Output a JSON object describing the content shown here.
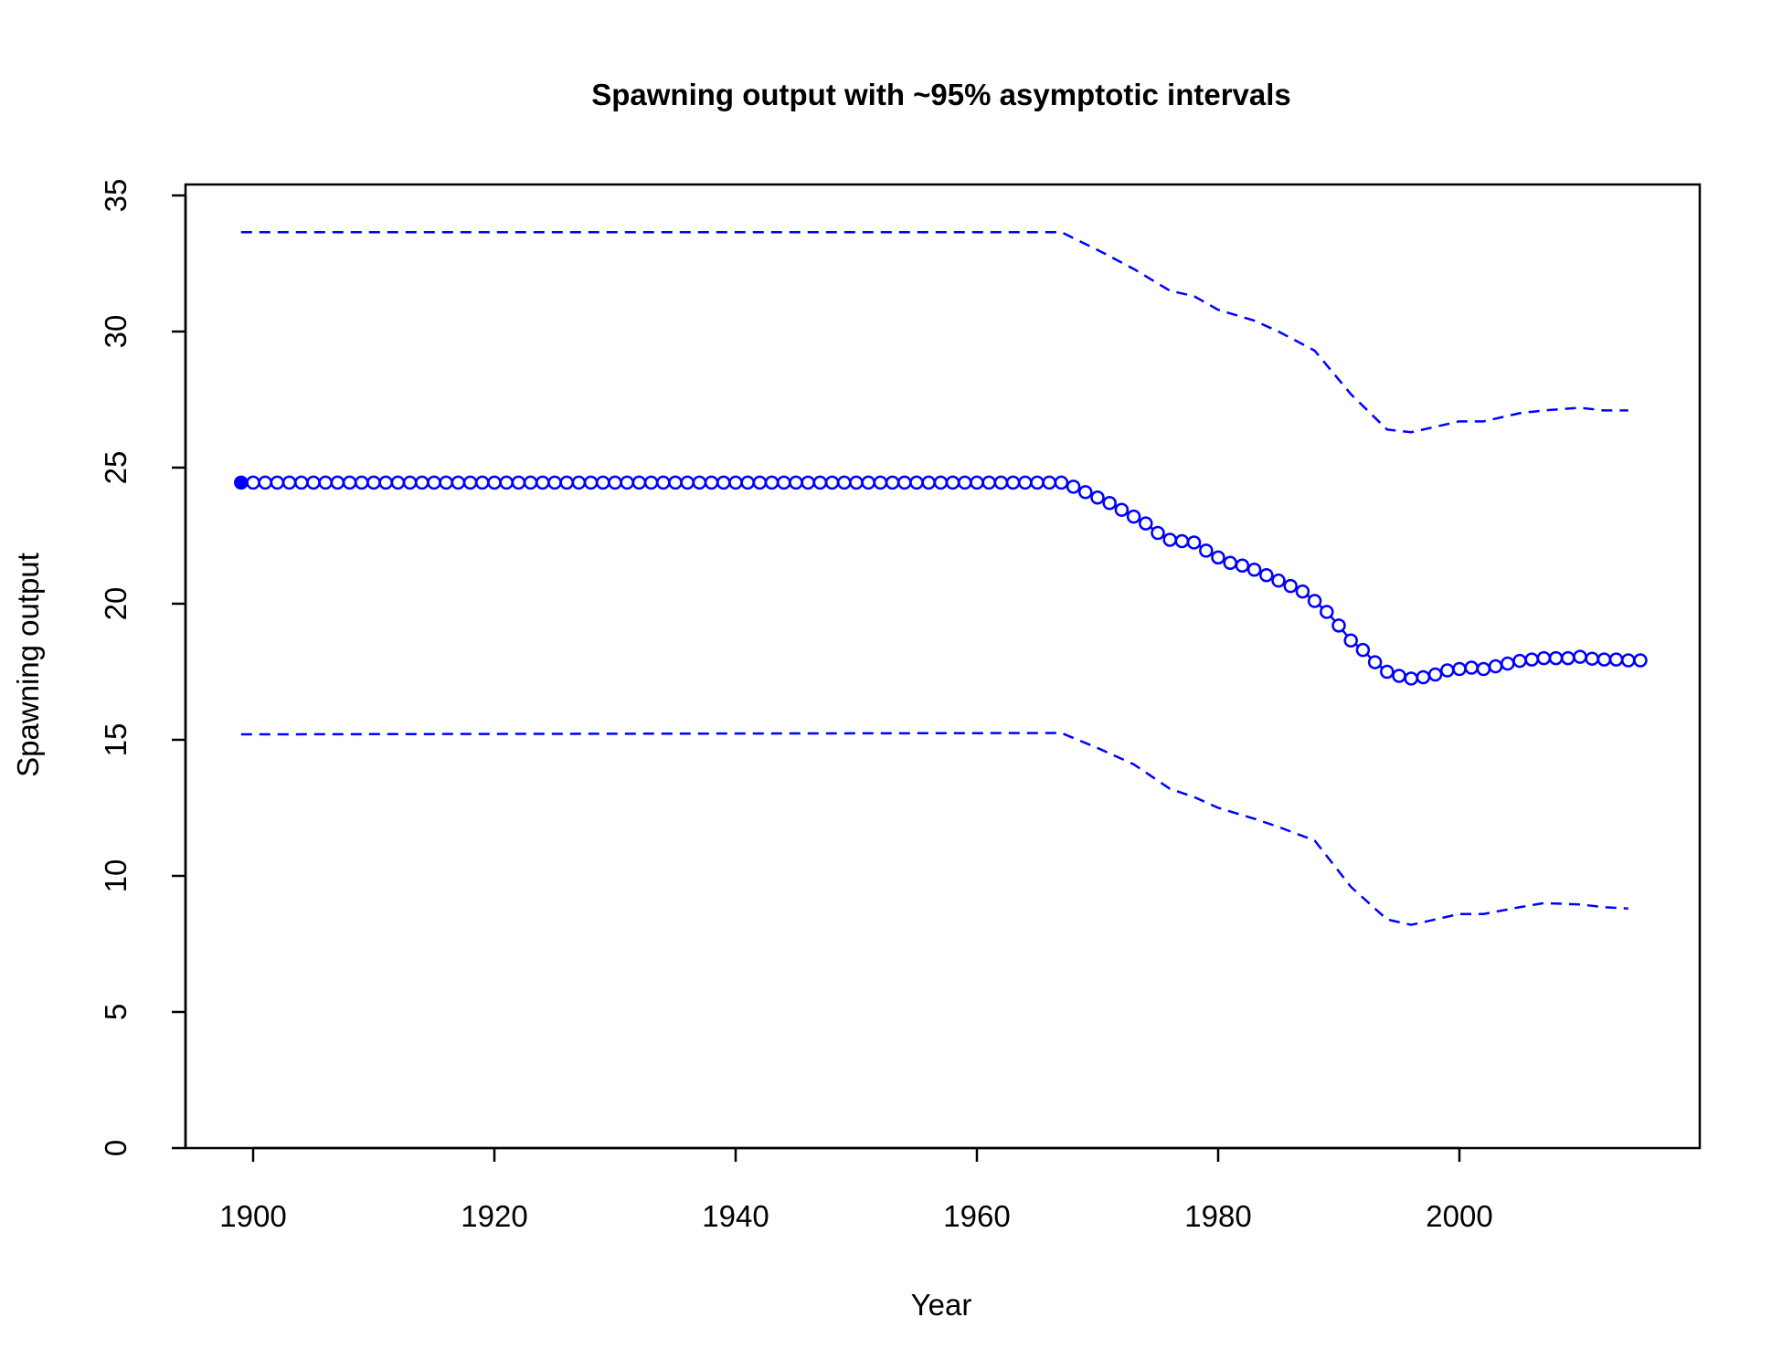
{
  "chart_data": {
    "type": "line",
    "title": "Spawning output with ~95% asymptotic intervals",
    "xlabel": "Year",
    "ylabel": "Spawning output",
    "xlim": [
      1899,
      2015
    ],
    "ylim": [
      0,
      35
    ],
    "x_ticks": [
      "1900",
      "1920",
      "1940",
      "1960",
      "1980",
      "2000"
    ],
    "y_ticks": [
      "0",
      "5",
      "10",
      "15",
      "20",
      "25",
      "30",
      "35"
    ],
    "grid": false,
    "legend": "none",
    "colors": {
      "series": "#0000ff",
      "axis": "#000000",
      "background": "#ffffff"
    },
    "series": [
      {
        "role": "estimate",
        "style": "solid line with open circles, first point filled",
        "x": [
          1899,
          1900,
          1901,
          1902,
          1903,
          1904,
          1905,
          1906,
          1907,
          1908,
          1909,
          1910,
          1911,
          1912,
          1913,
          1914,
          1915,
          1916,
          1917,
          1918,
          1919,
          1920,
          1921,
          1922,
          1923,
          1924,
          1925,
          1926,
          1927,
          1928,
          1929,
          1930,
          1931,
          1932,
          1933,
          1934,
          1935,
          1936,
          1937,
          1938,
          1939,
          1940,
          1941,
          1942,
          1943,
          1944,
          1945,
          1946,
          1947,
          1948,
          1949,
          1950,
          1951,
          1952,
          1953,
          1954,
          1955,
          1956,
          1957,
          1958,
          1959,
          1960,
          1961,
          1962,
          1963,
          1964,
          1965,
          1966,
          1967,
          1968,
          1969,
          1970,
          1971,
          1972,
          1973,
          1974,
          1975,
          1976,
          1977,
          1978,
          1979,
          1980,
          1981,
          1982,
          1983,
          1984,
          1985,
          1986,
          1987,
          1988,
          1989,
          1990,
          1991,
          1992,
          1993,
          1994,
          1995,
          1996,
          1997,
          1998,
          1999,
          2000,
          2001,
          2002,
          2003,
          2004,
          2005,
          2006,
          2007,
          2008,
          2009,
          2010,
          2011,
          2012,
          2013,
          2014,
          2015
        ],
        "y": [
          24.45,
          24.45,
          24.45,
          24.45,
          24.45,
          24.45,
          24.45,
          24.45,
          24.45,
          24.45,
          24.45,
          24.45,
          24.45,
          24.45,
          24.45,
          24.45,
          24.45,
          24.45,
          24.45,
          24.45,
          24.45,
          24.45,
          24.45,
          24.45,
          24.45,
          24.45,
          24.45,
          24.45,
          24.45,
          24.45,
          24.45,
          24.45,
          24.45,
          24.45,
          24.45,
          24.45,
          24.45,
          24.45,
          24.45,
          24.45,
          24.45,
          24.45,
          24.45,
          24.45,
          24.45,
          24.45,
          24.45,
          24.45,
          24.45,
          24.45,
          24.45,
          24.45,
          24.45,
          24.45,
          24.45,
          24.45,
          24.45,
          24.45,
          24.45,
          24.45,
          24.45,
          24.45,
          24.45,
          24.45,
          24.45,
          24.45,
          24.45,
          24.45,
          24.45,
          24.3,
          24.1,
          23.9,
          23.7,
          23.45,
          23.2,
          22.95,
          22.6,
          22.35,
          22.3,
          22.25,
          21.95,
          21.7,
          21.5,
          21.4,
          21.25,
          21.05,
          20.85,
          20.65,
          20.45,
          20.1,
          19.7,
          19.2,
          18.65,
          18.3,
          17.85,
          17.5,
          17.35,
          17.25,
          17.3,
          17.4,
          17.55,
          17.6,
          17.65,
          17.6,
          17.7,
          17.8,
          17.9,
          17.95,
          18.0,
          18.0,
          18.0,
          18.05,
          17.98,
          17.95,
          17.95,
          17.92,
          17.92
        ]
      },
      {
        "role": "upper 95% interval",
        "style": "dashed",
        "x": [
          1899,
          1967,
          1970,
          1973,
          1976,
          1978,
          1980,
          1983,
          1985,
          1988,
          1991,
          1994,
          1996,
          1998,
          2000,
          2002,
          2005,
          2007,
          2010,
          2012,
          2014
        ],
        "y": [
          33.65,
          33.65,
          33.0,
          32.3,
          31.5,
          31.3,
          30.8,
          30.4,
          30.0,
          29.3,
          27.7,
          26.4,
          26.3,
          26.5,
          26.7,
          26.7,
          27.0,
          27.1,
          27.2,
          27.1,
          27.1
        ]
      },
      {
        "role": "lower 95% interval",
        "style": "dashed",
        "x": [
          1899,
          1967,
          1970,
          1973,
          1976,
          1978,
          1980,
          1983,
          1985,
          1988,
          1991,
          1994,
          1996,
          1998,
          2000,
          2002,
          2005,
          2007,
          2010,
          2012,
          2014
        ],
        "y": [
          15.2,
          15.25,
          14.7,
          14.1,
          13.2,
          12.9,
          12.5,
          12.1,
          11.8,
          11.3,
          9.6,
          8.4,
          8.2,
          8.4,
          8.6,
          8.6,
          8.85,
          9.0,
          8.95,
          8.85,
          8.8
        ]
      }
    ]
  }
}
